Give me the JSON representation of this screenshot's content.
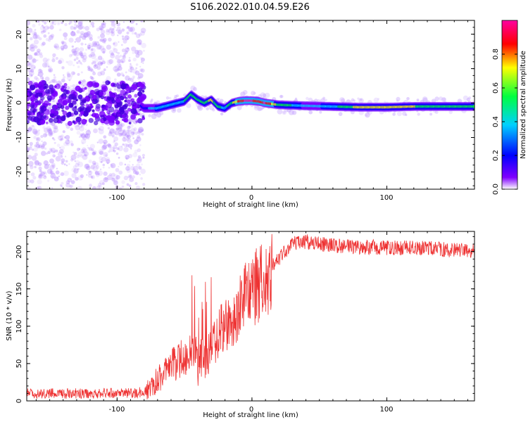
{
  "title": "S106.2022.010.04.59.E26",
  "chart_data": [
    {
      "type": "heatmap",
      "xlabel": "Height of straight line (km)",
      "ylabel": "Frequency (Hz)",
      "xlim": [
        -167,
        165
      ],
      "ylim": [
        -25,
        24
      ],
      "xticks": [
        -100,
        0,
        100
      ],
      "yticks": [
        -20,
        -10,
        0,
        10,
        20
      ],
      "xtick_labels": [
        "-100",
        "0",
        "100"
      ],
      "ytick_labels": [
        "-20",
        "-10",
        "0",
        "10",
        "20"
      ],
      "grid": false,
      "colorbar": {
        "label": "Normalized spectral amplitude",
        "range": [
          0,
          1
        ],
        "ticks": [
          0.0,
          0.2,
          0.4,
          0.6,
          0.8
        ],
        "tick_labels": [
          "0.0",
          "0.2",
          "0.4",
          "0.6",
          "0.8"
        ],
        "colormap": "rainbow",
        "colors": [
          "#ffffff",
          "#8000ff",
          "#0000ff",
          "#00d0ff",
          "#00ff40",
          "#ffff00",
          "#ff0000",
          "#ff00a0"
        ]
      },
      "ridge": {
        "x": [
          -167,
          -140,
          -110,
          -85,
          -80,
          -70,
          -60,
          -50,
          -45,
          -40,
          -35,
          -30,
          -25,
          -20,
          -15,
          -10,
          -5,
          0,
          5,
          10,
          20,
          40,
          60,
          80,
          100,
          120,
          140,
          165
        ],
        "frequency": [
          0.5,
          0.5,
          0.3,
          0.2,
          -1.5,
          -1.5,
          -0.5,
          0.5,
          2.5,
          1.0,
          0.0,
          1.0,
          -1.0,
          -1.5,
          0.0,
          0.5,
          0.7,
          0.7,
          0.5,
          0.0,
          -0.5,
          -0.8,
          -1.0,
          -1.2,
          -1.2,
          -1.0,
          -1.0,
          -1.0
        ],
        "amplitude": [
          0.2,
          0.2,
          0.2,
          0.2,
          0.3,
          0.45,
          0.45,
          0.5,
          0.6,
          0.6,
          0.55,
          0.7,
          0.55,
          0.45,
          0.6,
          0.8,
          0.95,
          0.95,
          0.85,
          0.95,
          0.6,
          0.4,
          0.45,
          0.7,
          0.7,
          0.65,
          0.55,
          0.5
        ]
      }
    },
    {
      "type": "line",
      "xlabel": "Height of straight line (km)",
      "ylabel": "SNR (10 * v/v)",
      "xlim": [
        -167,
        165
      ],
      "ylim": [
        0,
        227
      ],
      "xticks": [
        -100,
        0,
        100
      ],
      "yticks": [
        0,
        50,
        100,
        150,
        200
      ],
      "xtick_labels": [
        "-100",
        "0",
        "100"
      ],
      "ytick_labels": [
        "0",
        "50",
        "100",
        "150",
        "200"
      ],
      "grid": false,
      "color": "#ee3333",
      "series": [
        {
          "x": [
            -167,
            -150,
            -130,
            -110,
            -90,
            -80,
            -75,
            -70,
            -65,
            -60,
            -55,
            -50,
            -45,
            -40,
            -35,
            -30,
            -25,
            -20,
            -15,
            -10,
            -5,
            0,
            5,
            10,
            15,
            20,
            25,
            30,
            35,
            40,
            50,
            60,
            70,
            80,
            90,
            100,
            110,
            120,
            130,
            140,
            150,
            165
          ],
          "y": [
            10,
            10,
            10,
            10,
            10,
            12,
            18,
            30,
            35,
            45,
            55,
            60,
            70,
            60,
            55,
            70,
            90,
            110,
            90,
            120,
            140,
            150,
            160,
            170,
            180,
            190,
            200,
            210,
            212,
            213,
            210,
            208,
            207,
            206,
            206,
            205,
            205,
            205,
            205,
            203,
            202,
            200
          ]
        }
      ]
    }
  ]
}
